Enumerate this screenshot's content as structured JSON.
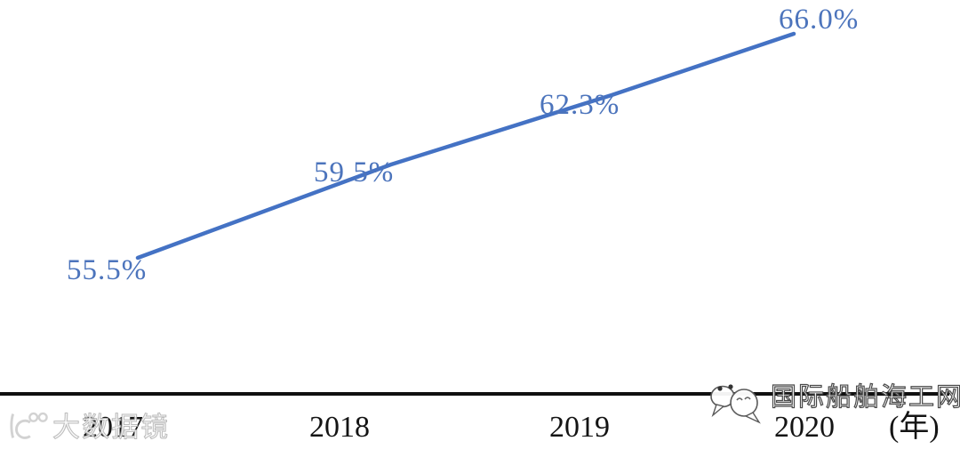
{
  "chart_data": {
    "type": "line",
    "categories": [
      "2017",
      "2018",
      "2019",
      "2020"
    ],
    "values": [
      55.5,
      59.5,
      62.3,
      66.0
    ],
    "data_labels": [
      "55.5%",
      "59.5%",
      "62.3%",
      "66.0%"
    ],
    "title": "",
    "xlabel": "(年)",
    "ylabel": "",
    "ylim": [
      53,
      68
    ],
    "grid": false,
    "legend": false,
    "line_color": "#4472C4",
    "data_label_color": "#4C74BC",
    "axis_color": "#101010",
    "marker": "none"
  },
  "watermark_left": {
    "logo_icon": "k100-logo",
    "text": "大数据镜"
  },
  "watermark_right": {
    "icon": "chat-bubbles-icon",
    "text": "国际船舶海工网"
  }
}
